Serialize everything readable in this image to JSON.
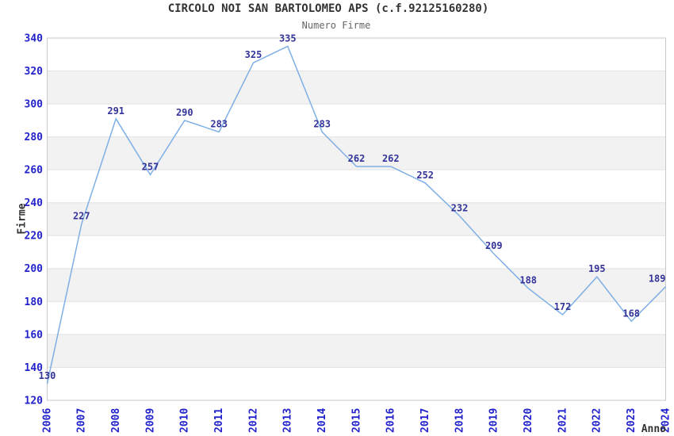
{
  "chart_data": {
    "type": "line",
    "title": "CIRCOLO NOI SAN BARTOLOMEO APS (c.f.92125160280)",
    "subtitle": "Numero Firme",
    "xlabel": "Anno",
    "ylabel": "Firme",
    "categories": [
      "2006",
      "2007",
      "2008",
      "2009",
      "2010",
      "2011",
      "2012",
      "2013",
      "2014",
      "2015",
      "2016",
      "2017",
      "2018",
      "2019",
      "2020",
      "2021",
      "2022",
      "2023",
      "2024"
    ],
    "values": [
      130,
      227,
      291,
      257,
      290,
      283,
      325,
      335,
      283,
      262,
      262,
      252,
      232,
      209,
      188,
      172,
      195,
      168,
      189
    ],
    "ylim": [
      120,
      340
    ],
    "ytick_step": 20,
    "yticks": [
      120,
      140,
      160,
      180,
      200,
      220,
      240,
      260,
      280,
      300,
      320,
      340
    ],
    "grid": "horizontal gridlines every 20, alternating gray bands (140-160, 180-200, 220-240, 260-280, 300-320)",
    "legend": "none",
    "data_labels": true,
    "colors": {
      "line": "#7FAFE5",
      "tick_label": "#2222CC",
      "data_label": "#333399",
      "title": "#333333",
      "subtitle": "#666666",
      "axis_title": "#333333",
      "band": "#F2F2F2",
      "gridline": "#E2E2E2",
      "border": "#C8C8C8",
      "background": "#FFFFFF"
    }
  }
}
